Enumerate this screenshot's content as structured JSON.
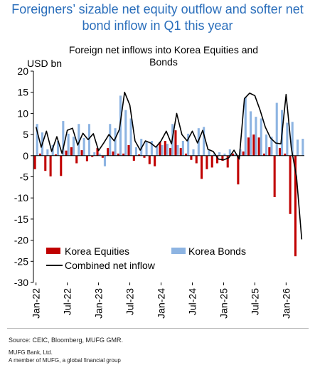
{
  "headline": {
    "line1": "Foreigners’ sizable net equity outflow and softer net",
    "line2": "bond inflow in Q1 this year"
  },
  "chart_data": {
    "type": "bar",
    "title_line1": "Foreign net inflows into Korea Equities and",
    "title_line2": "Bonds",
    "ylabel": "USD bn",
    "ylim": [
      -30,
      20
    ],
    "yticks": [
      20,
      15,
      10,
      5,
      0,
      -5,
      -10,
      -15,
      -20,
      -25,
      -30
    ],
    "x_tick_labels": [
      "Jan-22",
      "Jul-22",
      "Jan-23",
      "Jul-23",
      "Jan-24",
      "Jul-24",
      "Jan-25",
      "Jul-25",
      "Jan-26"
    ],
    "x_tick_index": [
      0,
      6,
      12,
      18,
      24,
      30,
      36,
      42,
      48
    ],
    "months": 52,
    "grid": false,
    "legend": "bottom-left",
    "series": [
      {
        "name": "Korea Equities",
        "color": "#c00000",
        "values": [
          -3.2,
          0.5,
          -3.6,
          -4.9,
          0.3,
          -4.8,
          1.2,
          2.0,
          -1.8,
          1.3,
          -1.3,
          -0.3,
          1.8,
          -0.5,
          1.8,
          1.0,
          0.5,
          0.5,
          2.5,
          -1.2,
          0.3,
          -0.5,
          -2.0,
          -2.5,
          3.2,
          3.5,
          1.8,
          6.0,
          1.8,
          0.5,
          -1.0,
          -1.8,
          -5.5,
          -3.2,
          -2.8,
          -1.8,
          -1.2,
          -2.8,
          0.5,
          -6.8,
          1.0,
          4.3,
          5.0,
          4.3,
          0.5,
          2.0,
          -9.8,
          1.8,
          0.5,
          -13.8,
          -23.8,
          0.0
        ]
      },
      {
        "name": "Korea Bonds",
        "color": "#8db4e2",
        "values": [
          7.5,
          5.5,
          1.5,
          2.5,
          3.5,
          8.2,
          5.2,
          4.5,
          7.5,
          4.2,
          7.5,
          0.8,
          0.5,
          -2.5,
          7.5,
          6.5,
          14.2,
          10.8,
          8.8,
          2.0,
          4.0,
          3.2,
          3.5,
          2.3,
          2.5,
          2.8,
          7.5,
          2.5,
          3.5,
          5.2,
          1.5,
          6.5,
          6.8,
          1.5,
          0.5,
          0.8,
          0.5,
          1.5,
          0.3,
          1.5,
          13.8,
          10.5,
          9.2,
          8.8,
          5.0,
          4.5,
          12.5,
          10.8,
          7.8,
          8.0,
          3.8,
          4.0
        ]
      },
      {
        "name": "Combined net inflow",
        "color": "#000000",
        "values": [
          6.8,
          2.0,
          5.8,
          1.0,
          4.5,
          0.5,
          6.0,
          6.5,
          2.5,
          5.3,
          3.8,
          5.2,
          1.2,
          3.0,
          5.0,
          3.5,
          6.2,
          15.0,
          12.0,
          3.5,
          1.3,
          3.5,
          3.0,
          2.0,
          3.5,
          5.8,
          2.8,
          10.0,
          5.0,
          3.5,
          5.8,
          3.0,
          6.0,
          1.5,
          1.0,
          -0.8,
          -1.0,
          -0.5,
          1.3,
          -0.8,
          13.5,
          14.8,
          14.2,
          10.8,
          6.8,
          4.2,
          3.0,
          2.8,
          14.5,
          1.8,
          -5.0,
          -19.8
        ]
      }
    ]
  },
  "footer": {
    "source": "Source: CEIC, Bloomberg, MUFG GMR.",
    "bank": "MUFG Bank, Ltd.",
    "member": "A member of MUFG, a global financial group"
  }
}
